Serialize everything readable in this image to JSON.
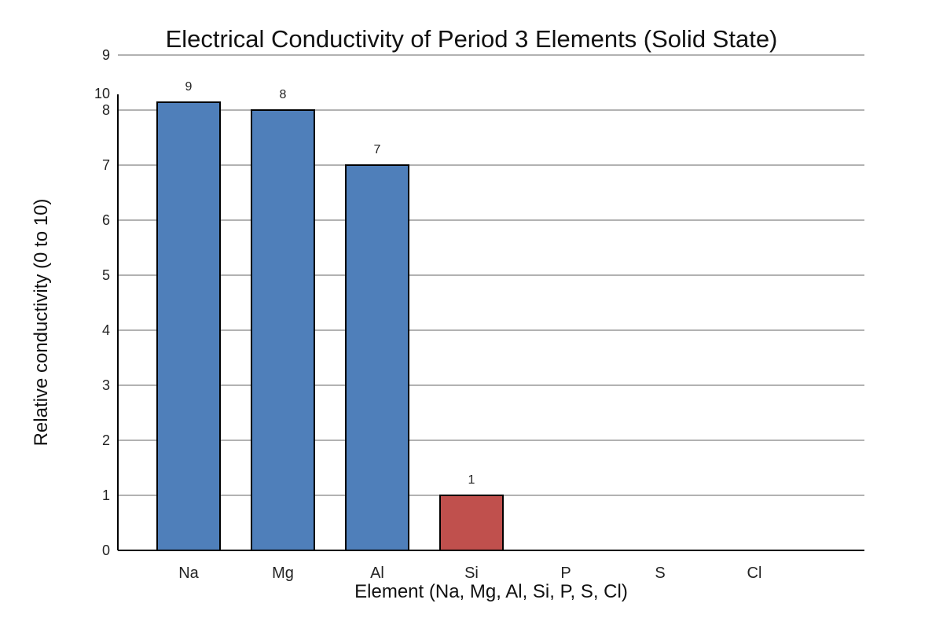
{
  "chart_data": {
    "type": "bar",
    "title": "Electrical Conductivity of Period 3 Elements (Solid State)",
    "xlabel": "Element (Na, Mg, Al, Si, P, S, Cl)",
    "ylabel": "Relative conductivity (0 to 10)",
    "categories": [
      "Na",
      "Mg",
      "Al",
      "Si",
      "P",
      "S",
      "Cl"
    ],
    "values": [
      9,
      8,
      7,
      1,
      0,
      0,
      0
    ],
    "data_labels": [
      "9",
      "8",
      "7",
      "1",
      "",
      "",
      ""
    ],
    "bar_colors": [
      "#4f7fba",
      "#4f7fba",
      "#4f7fba",
      "#c0504d",
      "#4f7fba",
      "#4f7fba",
      "#4f7fba"
    ],
    "ylim": [
      0,
      9
    ],
    "yticks": [
      {
        "value": 0,
        "label": "0"
      },
      {
        "value": 1,
        "label": "1"
      },
      {
        "value": 2,
        "label": "2"
      },
      {
        "value": 3,
        "label": "3"
      },
      {
        "value": 4,
        "label": "4"
      },
      {
        "value": 5,
        "label": "5"
      },
      {
        "value": 6,
        "label": "6"
      },
      {
        "value": 7,
        "label": "7"
      },
      {
        "value": 8,
        "label": "8"
      },
      {
        "value": 9,
        "label": "9"
      }
    ],
    "extra_tick_label": "10",
    "grid": true,
    "legend": "none"
  }
}
